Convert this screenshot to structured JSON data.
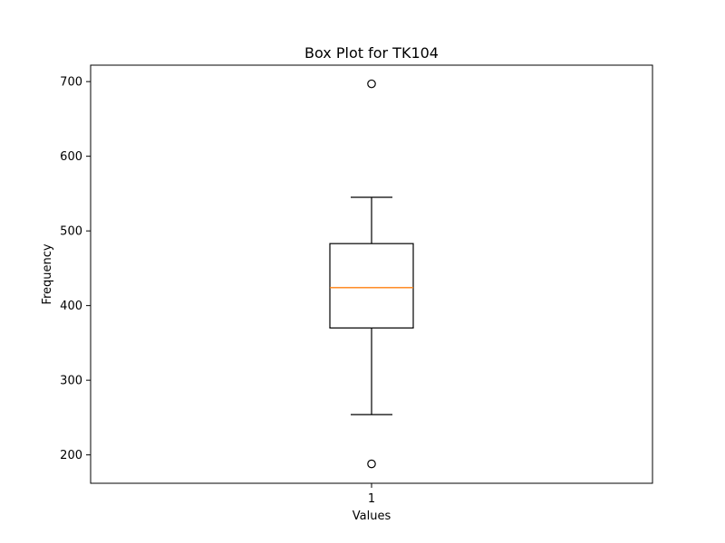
{
  "chart_data": {
    "type": "box",
    "title": "Box Plot for TK104",
    "xlabel": "Values",
    "ylabel": "Frequency",
    "categories": [
      "1"
    ],
    "ylim": [
      162,
      722
    ],
    "yticks": [
      200,
      300,
      400,
      500,
      600,
      700
    ],
    "grid": false,
    "boxes": [
      {
        "category": "1",
        "whisker_low": 254,
        "q1": 370,
        "median": 424,
        "q3": 483,
        "whisker_high": 545,
        "outliers": [
          697,
          188
        ]
      }
    ],
    "colors": {
      "box": "#000000",
      "median": "#ff7f0e",
      "outlier_edge": "#000000"
    }
  }
}
